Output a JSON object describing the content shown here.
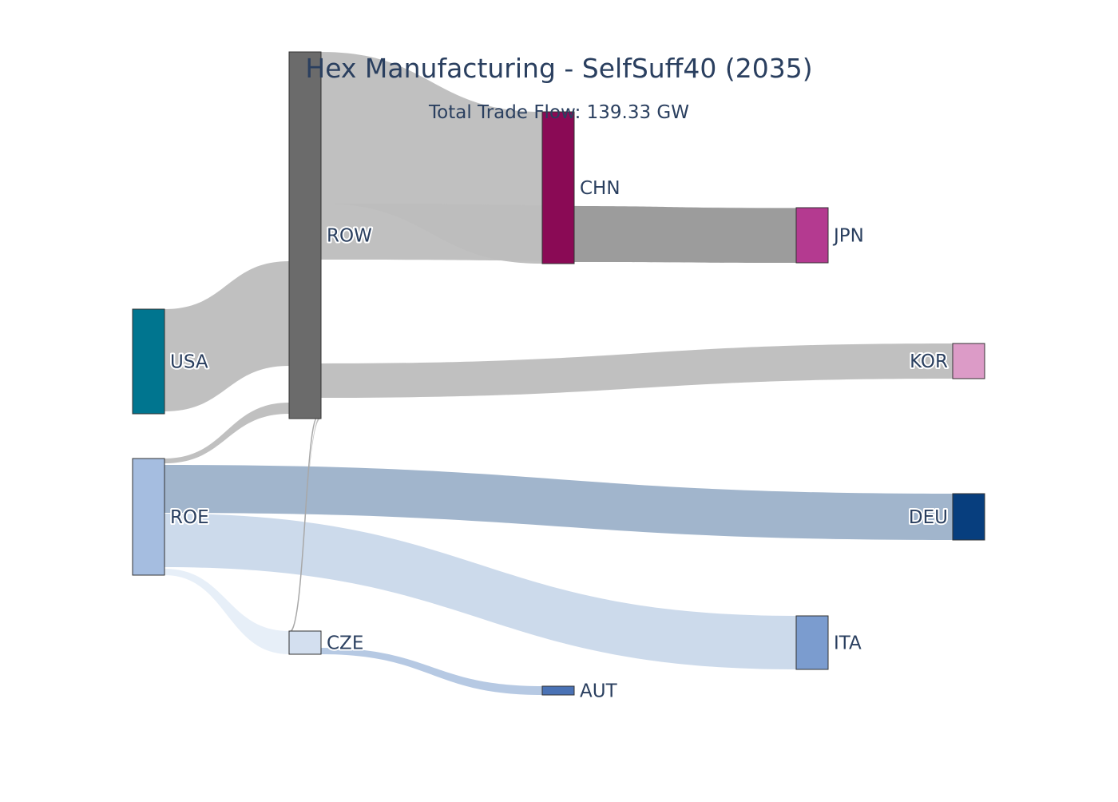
{
  "title": "Hex Manufacturing - SelfSuff40 (2035)",
  "subtitle": "Total Trade Flow: 139.33 GW",
  "nodes": [
    {
      "id": "USA",
      "label": "USA",
      "color": "#00758f"
    },
    {
      "id": "ROE",
      "label": "ROE",
      "color": "#a5bde0"
    },
    {
      "id": "ROW",
      "label": "ROW",
      "color": "#6b6b6b"
    },
    {
      "id": "CZE",
      "label": "CZE",
      "color": "#d3dfef"
    },
    {
      "id": "CHN",
      "label": "CHN",
      "color": "#8a0a55"
    },
    {
      "id": "AUT",
      "label": "AUT",
      "color": "#4a72b5"
    },
    {
      "id": "JPN",
      "label": "JPN",
      "color": "#b43a90"
    },
    {
      "id": "ITA",
      "label": "ITA",
      "color": "#7b9ccf"
    },
    {
      "id": "KOR",
      "label": "KOR",
      "color": "#dc9bc7"
    },
    {
      "id": "DEU",
      "label": "DEU",
      "color": "#073e7e"
    }
  ],
  "link_colors": {
    "gray": "#bdbdbd",
    "gray_dark": "#9a9a9a",
    "blue_mid": "#9cb1c9",
    "blue_light": "#c9d8ea",
    "blue_pale": "#e6eef8",
    "blue_cze": "#b2c6e2"
  }
}
